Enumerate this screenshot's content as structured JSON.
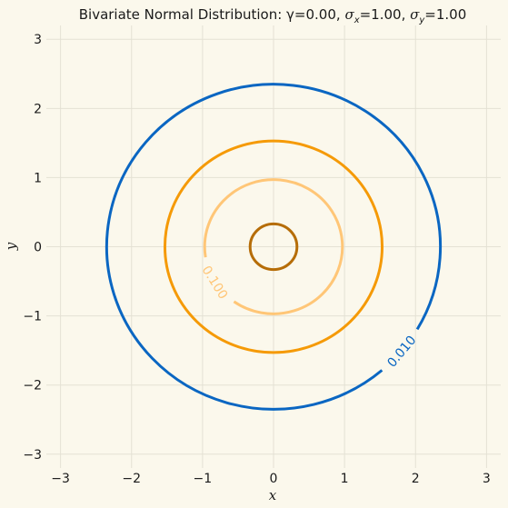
{
  "chart_data": {
    "type": "contour",
    "title": {
      "prefix": "Bivariate Normal Distribution: γ=",
      "gamma": "0.00",
      "sigma_x_label": "σ",
      "sigma_x_sub": "x",
      "sigma_x_value": "=1.00",
      "sigma_y_label": "σ",
      "sigma_y_sub": "y",
      "sigma_y_value": "=1.00"
    },
    "xlabel": "x",
    "ylabel": "y",
    "xlim": [
      -3.2,
      3.2
    ],
    "ylim": [
      -3.2,
      3.2
    ],
    "xticks": [
      -3,
      -2,
      -1,
      0,
      1,
      2,
      3
    ],
    "yticks": [
      -3,
      -2,
      -1,
      0,
      1,
      2,
      3
    ],
    "xtick_labels": [
      "−3",
      "−2",
      "−1",
      "0",
      "1",
      "2",
      "3"
    ],
    "ytick_labels": [
      "−3",
      "−2",
      "−1",
      "0",
      "1",
      "2",
      "3"
    ],
    "grid": true,
    "center": [
      0,
      0
    ],
    "contours": [
      {
        "level": 0.01,
        "radius": 2.35,
        "color": "#0a66c2",
        "label": "0.010",
        "label_angle_deg": -40
      },
      {
        "level": 0.05,
        "radius": 1.53,
        "color": "#f59a07",
        "label": "",
        "label_angle_deg": null
      },
      {
        "level": 0.1,
        "radius": 0.97,
        "color": "#ffc677",
        "label": "0.100",
        "label_angle_deg": -148
      },
      {
        "level": 0.15,
        "radius": 0.33,
        "color": "#b66d08",
        "label": "",
        "label_angle_deg": null
      }
    ]
  },
  "colors": {
    "background": "#fbf8ec",
    "grid": "#e4e1d4",
    "text": "#1a1a1a"
  }
}
